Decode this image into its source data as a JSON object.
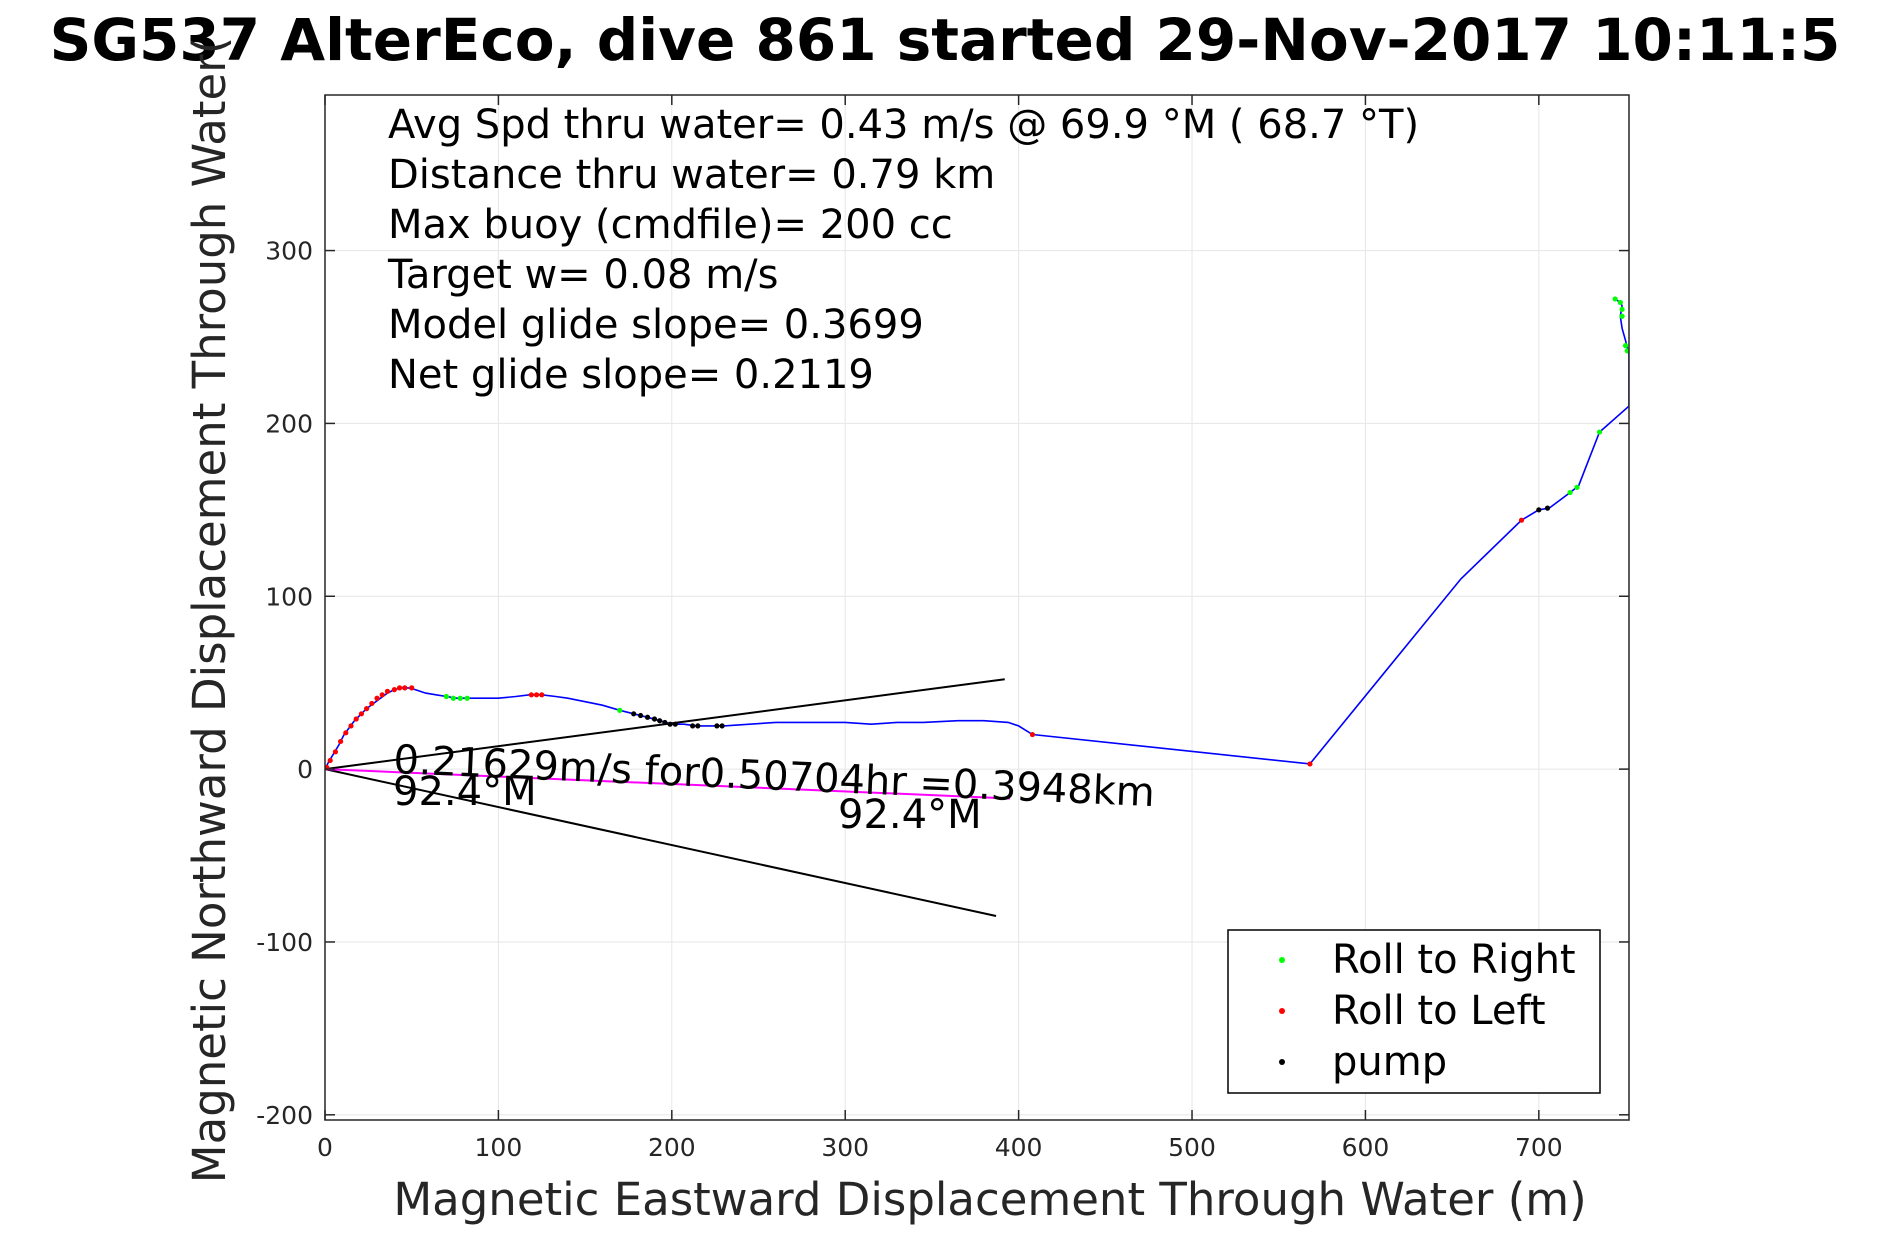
{
  "colors": {
    "track": "#0000ff",
    "roll_right": "#00ff00",
    "roll_left": "#ff0000",
    "pump": "#000000",
    "current": "#ff00ff",
    "bounds": "#000000",
    "grid": "#e6e6e6"
  },
  "chart_data": {
    "type": "scatter",
    "title": "SG537 AlterEco, dive 861 started 29-Nov-2017 10:11:5",
    "xlabel": "Magnetic Eastward Displacement Through Water (m)",
    "ylabel": "Magnetic Northward Displacement Through Water(",
    "xlim": [
      0,
      752
    ],
    "ylim": [
      -203,
      390
    ],
    "xticks": [
      0,
      100,
      200,
      300,
      400,
      500,
      600,
      700
    ],
    "yticks": [
      -200,
      -100,
      0,
      100,
      200,
      300
    ],
    "xtick_labels": [
      "0",
      "100",
      "200",
      "300",
      "400",
      "500",
      "600",
      "700"
    ],
    "ytick_labels": [
      "-200",
      "-100",
      "0",
      "100",
      "200",
      "300"
    ],
    "grid": true,
    "legend_position": "bottom-right",
    "stats": [
      "Avg Spd thru water=  0.43 m/s @  69.9 °M ( 68.7 °T)",
      "Distance thru water=  0.79 km",
      "Max buoy (cmdfile)= 200 cc",
      "Target w= 0.08 m/s",
      "Model glide slope= 0.3699",
      "Net glide slope= 0.2119"
    ],
    "annotations": {
      "current": "0.21629m/s for0.50704hr =0.3948km",
      "heading_near": "92.4°M",
      "heading_far": "92.4°M"
    },
    "legend": [
      "Roll to Right",
      "Roll to Left",
      "pump"
    ],
    "track": [
      [
        0,
        0
      ],
      [
        2,
        4
      ],
      [
        5,
        9
      ],
      [
        8,
        14
      ],
      [
        11,
        20
      ],
      [
        14,
        24
      ],
      [
        17,
        28
      ],
      [
        20,
        31
      ],
      [
        24,
        35
      ],
      [
        28,
        38
      ],
      [
        32,
        41
      ],
      [
        36,
        44
      ],
      [
        40,
        46
      ],
      [
        44,
        47
      ],
      [
        48,
        47
      ],
      [
        52,
        46
      ],
      [
        58,
        44
      ],
      [
        64,
        43
      ],
      [
        70,
        42
      ],
      [
        76,
        41
      ],
      [
        84,
        41
      ],
      [
        92,
        41
      ],
      [
        100,
        41
      ],
      [
        110,
        42
      ],
      [
        118,
        43
      ],
      [
        125,
        43
      ],
      [
        133,
        42
      ],
      [
        140,
        41
      ],
      [
        150,
        39
      ],
      [
        160,
        37
      ],
      [
        170,
        34
      ],
      [
        178,
        32
      ],
      [
        186,
        30
      ],
      [
        193,
        28
      ],
      [
        200,
        26
      ],
      [
        207,
        26
      ],
      [
        214,
        25
      ],
      [
        222,
        25
      ],
      [
        230,
        25
      ],
      [
        245,
        26
      ],
      [
        260,
        27
      ],
      [
        280,
        27
      ],
      [
        300,
        27
      ],
      [
        315,
        26
      ],
      [
        330,
        27
      ],
      [
        345,
        27
      ],
      [
        365,
        28
      ],
      [
        380,
        28
      ],
      [
        394,
        27
      ],
      [
        400,
        25
      ],
      [
        408,
        20
      ],
      [
        568,
        3
      ],
      [
        655,
        110
      ],
      [
        690,
        144
      ],
      [
        700,
        150
      ],
      [
        706,
        151
      ],
      [
        718,
        160
      ],
      [
        723,
        164
      ],
      [
        735,
        195
      ],
      [
        752,
        210
      ],
      [
        752,
        240
      ],
      [
        750,
        248
      ],
      [
        748,
        255
      ],
      [
        747,
        262
      ],
      [
        748,
        268
      ],
      [
        747,
        270
      ],
      [
        744,
        272
      ]
    ],
    "roll_right": [
      [
        70,
        42
      ],
      [
        74,
        41
      ],
      [
        78,
        41
      ],
      [
        82,
        41
      ],
      [
        170,
        34
      ],
      [
        718,
        160
      ],
      [
        722,
        163
      ],
      [
        735,
        195
      ],
      [
        744,
        272
      ],
      [
        747,
        270
      ],
      [
        748,
        266
      ],
      [
        748,
        262
      ],
      [
        750,
        245
      ],
      [
        751,
        242
      ]
    ],
    "roll_left": [
      [
        1,
        1
      ],
      [
        3,
        5
      ],
      [
        6,
        10
      ],
      [
        9,
        16
      ],
      [
        12,
        21
      ],
      [
        15,
        25
      ],
      [
        18,
        29
      ],
      [
        21,
        32
      ],
      [
        24,
        35
      ],
      [
        27,
        38
      ],
      [
        30,
        41
      ],
      [
        33,
        43
      ],
      [
        36,
        45
      ],
      [
        40,
        46
      ],
      [
        43,
        47
      ],
      [
        46,
        47
      ],
      [
        50,
        47
      ],
      [
        119,
        43
      ],
      [
        122,
        43
      ],
      [
        125,
        43
      ],
      [
        408,
        20
      ],
      [
        568,
        3
      ],
      [
        690,
        144
      ]
    ],
    "pump": [
      [
        178,
        32
      ],
      [
        182,
        31
      ],
      [
        186,
        30
      ],
      [
        190,
        29
      ],
      [
        193,
        28
      ],
      [
        196,
        27
      ],
      [
        199,
        26
      ],
      [
        202,
        26
      ],
      [
        212,
        25
      ],
      [
        215,
        25
      ],
      [
        226,
        25
      ],
      [
        229,
        25
      ],
      [
        700,
        150
      ],
      [
        705,
        151
      ]
    ],
    "current_line": [
      [
        0,
        0
      ],
      [
        395,
        -17
      ]
    ],
    "bound_upper": [
      [
        0,
        0
      ],
      [
        392,
        52
      ]
    ],
    "bound_lower": [
      [
        0,
        0
      ],
      [
        387,
        -85
      ]
    ]
  }
}
